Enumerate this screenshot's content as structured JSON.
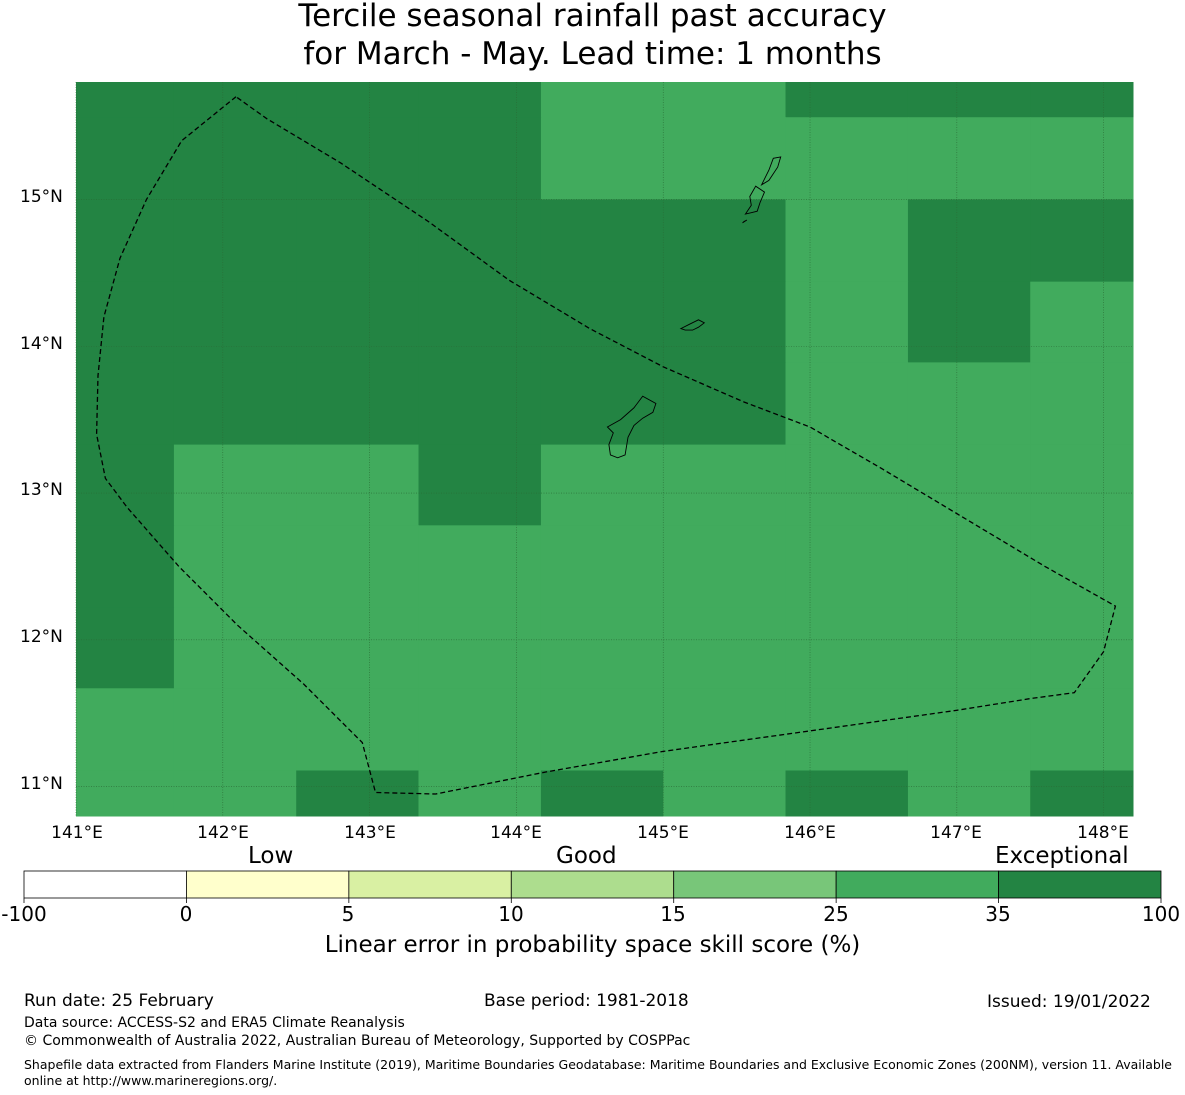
{
  "title": {
    "line1": "Tercile seasonal rainfall past accuracy",
    "line2": "for March - May. Lead time: 1 months"
  },
  "map": {
    "lat_range": [
      10.8,
      15.8
    ],
    "lon_range": [
      141.0,
      148.2
    ],
    "lat_labels": [
      {
        "lat": 15,
        "text": "15°N"
      },
      {
        "lat": 14,
        "text": "14°N"
      },
      {
        "lat": 13,
        "text": "13°N"
      },
      {
        "lat": 12,
        "text": "12°N"
      },
      {
        "lat": 11,
        "text": "11°N"
      }
    ],
    "lon_labels": [
      {
        "lon": 141,
        "text": "141°E"
      },
      {
        "lon": 142,
        "text": "142°E"
      },
      {
        "lon": 143,
        "text": "143°E"
      },
      {
        "lon": 144,
        "text": "144°E"
      },
      {
        "lon": 145,
        "text": "145°E"
      },
      {
        "lon": 146,
        "text": "146°E"
      },
      {
        "lon": 147,
        "text": "147°E"
      },
      {
        "lon": 148,
        "text": "148°E"
      }
    ],
    "grid_lon_edges": [
      141.0,
      141.667,
      142.5,
      143.333,
      144.167,
      145.0,
      145.833,
      146.667,
      147.5,
      148.2
    ],
    "grid_lat_edges": [
      15.8,
      15.56,
      15.0,
      14.44,
      13.89,
      13.33,
      12.78,
      12.22,
      11.67,
      11.11,
      10.8
    ],
    "cells": [
      [
        35,
        35,
        35,
        35,
        25,
        25,
        35,
        35,
        35
      ],
      [
        35,
        35,
        35,
        35,
        25,
        25,
        25,
        25,
        25
      ],
      [
        50,
        35,
        35,
        35,
        35,
        35,
        25,
        35,
        35
      ],
      [
        35,
        35,
        35,
        35,
        35,
        35,
        25,
        35,
        25
      ],
      [
        35,
        35,
        35,
        35,
        35,
        35,
        25,
        25,
        25
      ],
      [
        35,
        25,
        25,
        35,
        25,
        25,
        25,
        25,
        25
      ],
      [
        35,
        25,
        25,
        25,
        25,
        25,
        25,
        25,
        25
      ],
      [
        35,
        25,
        25,
        25,
        25,
        25,
        25,
        25,
        25
      ],
      [
        25,
        25,
        25,
        25,
        25,
        25,
        25,
        25,
        25
      ],
      [
        25,
        25,
        35,
        25,
        35,
        25,
        35,
        25,
        35
      ]
    ],
    "boundary": [
      [
        142.09,
        15.7
      ],
      [
        141.72,
        15.4
      ],
      [
        141.48,
        15.0
      ],
      [
        141.3,
        14.6
      ],
      [
        141.19,
        14.2
      ],
      [
        141.15,
        13.8
      ],
      [
        141.14,
        13.4
      ],
      [
        141.2,
        13.1
      ],
      [
        141.35,
        12.9
      ],
      [
        141.7,
        12.5
      ],
      [
        142.1,
        12.1
      ],
      [
        142.55,
        11.7
      ],
      [
        142.95,
        11.3
      ],
      [
        143.04,
        10.96
      ],
      [
        143.45,
        10.95
      ],
      [
        144.2,
        11.1
      ],
      [
        145.0,
        11.24
      ],
      [
        145.5,
        11.31
      ],
      [
        146.0,
        11.38
      ],
      [
        146.5,
        11.45
      ],
      [
        147.0,
        11.52
      ],
      [
        147.5,
        11.6
      ],
      [
        147.8,
        11.64
      ],
      [
        148.0,
        11.92
      ],
      [
        148.08,
        12.23
      ],
      [
        147.6,
        12.5
      ],
      [
        147.0,
        12.86
      ],
      [
        146.5,
        13.16
      ],
      [
        146.0,
        13.45
      ],
      [
        145.55,
        13.62
      ],
      [
        145.0,
        13.86
      ],
      [
        144.5,
        14.12
      ],
      [
        143.95,
        14.45
      ],
      [
        143.4,
        14.85
      ],
      [
        142.8,
        15.25
      ],
      [
        142.3,
        15.55
      ],
      [
        142.09,
        15.7
      ]
    ],
    "islands": [
      [
        [
          144.62,
          13.45
        ],
        [
          144.71,
          13.5
        ],
        [
          144.8,
          13.58
        ],
        [
          144.86,
          13.66
        ],
        [
          144.95,
          13.61
        ],
        [
          144.93,
          13.55
        ],
        [
          144.86,
          13.51
        ],
        [
          144.8,
          13.46
        ],
        [
          144.76,
          13.38
        ],
        [
          144.74,
          13.26
        ],
        [
          144.69,
          13.24
        ],
        [
          144.64,
          13.26
        ],
        [
          144.63,
          13.33
        ],
        [
          144.66,
          13.41
        ],
        [
          144.62,
          13.45
        ]
      ],
      [
        [
          145.12,
          14.12
        ],
        [
          145.18,
          14.15
        ],
        [
          145.24,
          14.18
        ],
        [
          145.28,
          14.16
        ],
        [
          145.24,
          14.13
        ],
        [
          145.2,
          14.11
        ],
        [
          145.15,
          14.11
        ],
        [
          145.12,
          14.12
        ]
      ],
      [
        [
          145.56,
          14.9
        ],
        [
          145.6,
          14.96
        ],
        [
          145.59,
          15.02
        ],
        [
          145.63,
          15.09
        ],
        [
          145.69,
          15.05
        ],
        [
          145.66,
          14.98
        ],
        [
          145.64,
          14.92
        ],
        [
          145.6,
          14.91
        ],
        [
          145.56,
          14.9
        ]
      ],
      [
        [
          145.54,
          14.84
        ],
        [
          145.57,
          14.86
        ],
        [
          145.55,
          14.85
        ],
        [
          145.54,
          14.84
        ]
      ],
      [
        [
          145.67,
          15.1
        ],
        [
          145.72,
          15.2
        ],
        [
          145.75,
          15.28
        ],
        [
          145.8,
          15.29
        ],
        [
          145.78,
          15.22
        ],
        [
          145.72,
          15.13
        ],
        [
          145.67,
          15.1
        ]
      ]
    ]
  },
  "colorbar": {
    "bins": [
      {
        "color": "#ffffff"
      },
      {
        "color": "#ffffcc"
      },
      {
        "color": "#d9f0a3"
      },
      {
        "color": "#addd8e"
      },
      {
        "color": "#78c679"
      },
      {
        "color": "#41ab5d"
      },
      {
        "color": "#238443"
      }
    ],
    "ticks": [
      "-100",
      "0",
      "5",
      "10",
      "15",
      "25",
      "35",
      "100"
    ],
    "categories": {
      "low": "Low",
      "good": "Good",
      "exceptional": "Exceptional"
    },
    "label": "Linear error in probability space skill score (%)"
  },
  "footer": {
    "run_date": "Run date: 25 February",
    "base_period": "Base period: 1981-2018",
    "issued": "Issued: 19/01/2022",
    "data_source": "Data source: ACCESS-S2 and ERA5 Climate Reanalysis",
    "copyright": "© Commonwealth of Australia 2022, Australian Bureau of Meteorology, Supported by COSPPac",
    "shapefile": "Shapefile data extracted from Flanders Marine Institute (2019), Maritime Boundaries Geodatabase: Maritime Boundaries and Exclusive Economic Zones (200NM), version 11. Available online at http://www.marineregions.org/."
  }
}
